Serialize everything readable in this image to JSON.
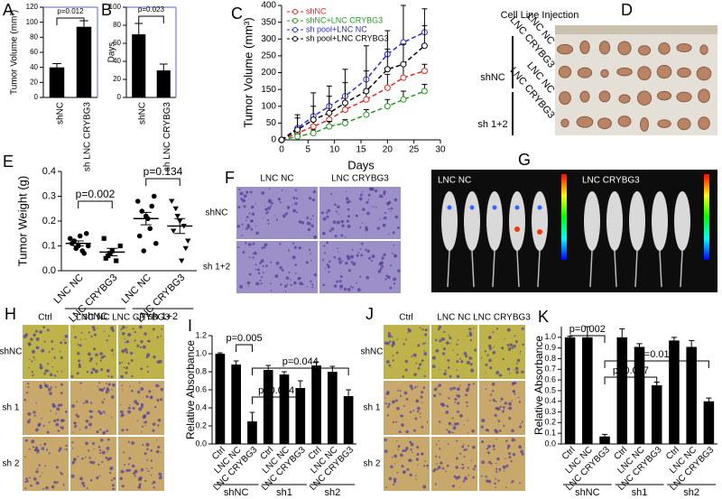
{
  "chart_data": [
    {
      "type": "bar",
      "label": "A",
      "ylabel": "Tumor Volume (mm³)",
      "categories": [
        "shNC",
        "sh LNC CRYBG3"
      ],
      "values": [
        40,
        94
      ],
      "errors": [
        5,
        8
      ],
      "color": "#000000",
      "ylim": [
        0,
        120
      ],
      "yticks": [
        0,
        20,
        40,
        60,
        80,
        100,
        120
      ],
      "annotations": [
        "p=0.012"
      ]
    },
    {
      "type": "bar",
      "label": "B",
      "ylabel": "Days",
      "categories": [
        "shNC",
        "sh  LNC CRYBG3"
      ],
      "values": [
        70,
        30
      ],
      "errors": [
        12,
        7
      ],
      "color": "#000000",
      "ylim": [
        0,
        100
      ],
      "yticks": [
        0,
        20,
        40,
        60,
        80,
        100
      ],
      "annotations": [
        "p=0.023"
      ]
    },
    {
      "type": "line",
      "label": "C",
      "ylabel": "Tumor Volume (mm³)",
      "xlabel": "Days",
      "x": [
        0,
        3,
        6,
        9,
        12,
        16,
        20,
        23,
        27
      ],
      "xlim": [
        0,
        30
      ],
      "xticks": [
        0,
        5,
        10,
        15,
        20,
        25,
        30
      ],
      "ylim": [
        0,
        400
      ],
      "yticks": [
        0,
        50,
        100,
        150,
        200,
        250,
        300,
        350,
        400
      ],
      "series": [
        {
          "name": "shNC",
          "color": "#e8251f",
          "values": [
            0,
            20,
            40,
            60,
            90,
            120,
            155,
            185,
            205
          ],
          "errors": [
            0,
            10,
            15,
            20,
            25,
            30,
            40,
            40,
            20
          ]
        },
        {
          "name": "shNC+LNC CRYBG3",
          "color": "#1f9a1f",
          "values": [
            0,
            10,
            20,
            40,
            50,
            75,
            100,
            120,
            145
          ],
          "errors": [
            0,
            8,
            10,
            15,
            10,
            15,
            20,
            25,
            20
          ]
        },
        {
          "name": "sh pool+LNC NC",
          "color": "#2b2bd6",
          "values": [
            0,
            35,
            70,
            100,
            130,
            180,
            255,
            290,
            320
          ],
          "errors": [
            0,
            40,
            70,
            60,
            80,
            100,
            70,
            110,
            70
          ]
        },
        {
          "name": "sh pool+LNC CRYBG3",
          "color": "#000000",
          "values": [
            0,
            30,
            60,
            80,
            110,
            145,
            210,
            225,
            280
          ],
          "errors": [
            0,
            35,
            40,
            50,
            60,
            60,
            60,
            60,
            60
          ]
        }
      ]
    },
    {
      "type": "dot",
      "label": "E",
      "ylabel": "Tumor Weight (g)",
      "categories": [
        "LNC NC",
        "LNC CRYBG3",
        "LNC NC",
        "LNC CRYBG3"
      ],
      "groups": [
        "shNC",
        "sh 1+2"
      ],
      "points": [
        [
          0.13,
          0.12,
          0.1,
          0.08,
          0.15,
          0.11,
          0.09,
          0.14,
          0.07,
          0.1
        ],
        [
          0.13,
          0.06,
          0.08,
          0.04,
          0.1,
          0.05,
          0.07
        ],
        [
          0.28,
          0.24,
          0.22,
          0.17,
          0.3,
          0.14,
          0.08,
          0.21,
          0.26,
          0.11
        ],
        [
          0.28,
          0.25,
          0.2,
          0.18,
          0.12,
          0.16,
          0.22,
          0.04,
          0.09
        ]
      ],
      "means": [
        0.11,
        0.075,
        0.21,
        0.18
      ],
      "errors": [
        0.01,
        0.015,
        0.025,
        0.03
      ],
      "ylim": [
        0,
        0.4
      ],
      "yticks": [
        {
          "value": 0,
          "label": "0.0"
        },
        0.1,
        0.2,
        0.3,
        0.4
      ],
      "annotations": [
        "p=0.002",
        "p=0.134"
      ]
    },
    {
      "type": "bar",
      "label": "I",
      "ylabel": "Relative Absorbance",
      "categories": [
        "Ctrl",
        "LNC NC",
        "LNC CRYBG3",
        "Ctrl",
        "LNC NC",
        "LNC CRYBG3",
        "Ctrl",
        "LNC NC",
        "LNC CRYBG3"
      ],
      "groups": [
        "shNC",
        "sh1",
        "sh2"
      ],
      "values": [
        1.0,
        0.88,
        0.25,
        0.82,
        0.77,
        0.62,
        0.87,
        0.8,
        0.53
      ],
      "errors": [
        0.01,
        0.04,
        0.1,
        0.05,
        0.03,
        0.08,
        0.04,
        0.06,
        0.07
      ],
      "color": "#000000",
      "ylim": [
        0,
        1.2
      ],
      "yticks": [
        {
          "value": 0,
          "label": "0.0"
        },
        0.2,
        0.4,
        0.6,
        0.8,
        {
          "value": 1,
          "label": "1.0"
        },
        1.2
      ],
      "annotations": [
        "p=0.005",
        "p=0.024",
        "p=0.044"
      ]
    },
    {
      "type": "bar",
      "label": "K",
      "ylabel": "Relative Absorbance",
      "categories": [
        "Ctrl",
        "LNC NC",
        "LNC CRYBG3",
        "Ctrl",
        "LNC NC",
        "LNC CRYBG3",
        "Ctrl",
        "LNC NC",
        "LNC CRYBG3"
      ],
      "groups": [
        "shNC",
        "sh1",
        "sh2"
      ],
      "values": [
        1.0,
        1.0,
        0.07,
        1.0,
        0.91,
        0.55,
        0.97,
        0.91,
        0.4
      ],
      "errors": [
        0.01,
        0.1,
        0.02,
        0.08,
        0.03,
        0.03,
        0.03,
        0.06,
        0.03
      ],
      "color": "#000000",
      "ylim": [
        0,
        1.1
      ],
      "yticks": [
        {
          "value": 0,
          "label": "0.0"
        },
        0.1,
        0.2,
        0.3,
        0.4,
        0.5,
        0.6,
        0.7,
        0.8,
        0.9,
        {
          "value": 1,
          "label": "1.0"
        }
      ],
      "annotations": [
        "p=0.002",
        "p=0.017",
        "p=0.015"
      ]
    }
  ],
  "figure_panels": [
    {
      "label": "D",
      "title": "Cell Line Injection",
      "groups": [
        {
          "name": "shNC",
          "rows": [
            "LNC NC",
            "LNC CRYBG3"
          ]
        },
        {
          "name": "sh 1+2",
          "rows": [
            "LNC NC",
            "LNC CRYBG3"
          ]
        }
      ]
    },
    {
      "label": "F",
      "columns": [
        "LNC NC",
        "LNC CRYBG3"
      ],
      "rows": [
        "shNC",
        "sh 1+2"
      ]
    },
    {
      "label": "G",
      "columns": [
        "LNC NC",
        "LNC CRYBG3"
      ]
    },
    {
      "label": "H",
      "columns": [
        "Ctrl",
        "LNC NC",
        "LNC CRYBG3"
      ],
      "rows": [
        "shNC",
        "sh 1",
        "sh 2"
      ]
    },
    {
      "label": "J",
      "columns": [
        "Ctrl",
        "LNC NC",
        "LNC CRYBG3"
      ],
      "rows": [
        "shNC",
        "sh 1",
        "sh 2"
      ]
    }
  ]
}
